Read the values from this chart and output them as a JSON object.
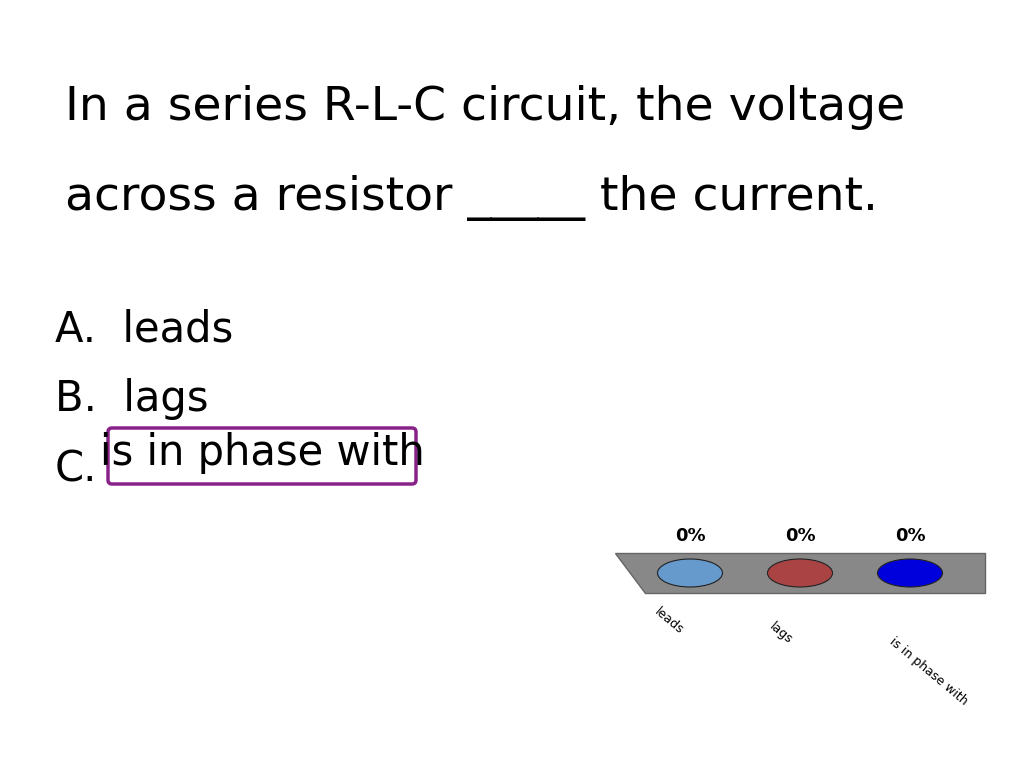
{
  "title_line1": "In a series R-L-C circuit, the voltage",
  "title_line2": "across a resistor _____ the current.",
  "opt_a": "A.  leads",
  "opt_b": "B.  lags",
  "opt_c_prefix": "C.",
  "answer_label": "is in phase with",
  "box_color": "#882288",
  "background_color": "#ffffff",
  "title_fontsize": 34,
  "options_fontsize": 30,
  "bar_labels": [
    "0%",
    "0%",
    "0%"
  ],
  "bar_option_labels": [
    "leads",
    "lags",
    "is in phase with"
  ],
  "dot_colors": [
    "#6699CC",
    "#AA4444",
    "#0000DD"
  ],
  "platform_color": "#888888"
}
